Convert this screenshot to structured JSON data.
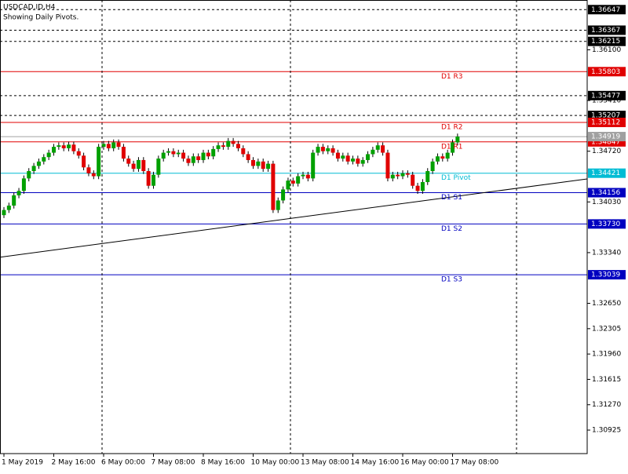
{
  "chart_data": {
    "type": "candlestick",
    "title": "USDCAD.ID,H4",
    "subtitle": "Showing Daily Pivots.",
    "categories": [
      "1 May 2019",
      null,
      null,
      null,
      null,
      null,
      null,
      null,
      null,
      null,
      "2 May 16:00",
      null,
      null,
      null,
      null,
      null,
      null,
      null,
      null,
      null,
      "6 May 00:00",
      null,
      null,
      null,
      null,
      null,
      null,
      null,
      null,
      null,
      "7 May 08:00",
      null,
      null,
      null,
      null,
      null,
      null,
      null,
      null,
      null,
      "8 May 16:00",
      null,
      null,
      null,
      null,
      null,
      null,
      null,
      null,
      null,
      "10 May 00:00",
      null,
      null,
      null,
      null,
      null,
      null,
      null,
      null,
      null,
      "13 May 08:00",
      null,
      null,
      null,
      null,
      null,
      null,
      null,
      null,
      null,
      "14 May 16:00",
      null,
      null,
      null,
      null,
      null,
      null,
      null,
      null,
      null,
      "16 May 00:00",
      null,
      null,
      null,
      null,
      null,
      null,
      null,
      null,
      null,
      "17 May 08:00",
      null
    ],
    "open": [
      1.3385,
      1.3392,
      1.3398,
      1.3412,
      1.3418,
      1.3435,
      1.3445,
      1.3452,
      1.3458,
      1.3464,
      1.347,
      1.3478,
      1.348,
      1.3476,
      1.3481,
      1.3472,
      1.3466,
      1.345,
      1.3442,
      1.3438,
      1.3478,
      1.3482,
      1.3476,
      1.3484,
      1.3478,
      1.3462,
      1.3455,
      1.3448,
      1.346,
      1.3445,
      1.3425,
      1.344,
      1.3462,
      1.347,
      1.3472,
      1.3468,
      1.347,
      1.3462,
      1.3456,
      1.3465,
      1.346,
      1.347,
      1.3465,
      1.3475,
      1.348,
      1.3478,
      1.3486,
      1.3482,
      1.3476,
      1.3468,
      1.346,
      1.3452,
      1.3458,
      1.3448,
      1.3455,
      1.3392,
      1.3405,
      1.342,
      1.3432,
      1.3428,
      1.3438,
      1.344,
      1.3435,
      1.347,
      1.3478,
      1.3472,
      1.3476,
      1.347,
      1.3462,
      1.3466,
      1.3458,
      1.3462,
      1.3455,
      1.346,
      1.3468,
      1.3474,
      1.348,
      1.347,
      1.3435,
      1.344,
      1.3438,
      1.3442,
      1.344,
      1.3425,
      1.3418,
      1.343,
      1.3445,
      1.3458,
      1.3465,
      1.3462,
      1.347,
      1.3484
    ],
    "high": [
      1.3396,
      1.3402,
      1.3416,
      1.3422,
      1.3439,
      1.3449,
      1.3456,
      1.3462,
      1.3468,
      1.3474,
      1.3482,
      1.3484,
      1.3484,
      1.3485,
      1.3485,
      1.3476,
      1.347,
      1.3454,
      1.3446,
      1.3482,
      1.3486,
      1.3486,
      1.3488,
      1.3488,
      1.3482,
      1.3466,
      1.3459,
      1.3464,
      1.3464,
      1.3449,
      1.3444,
      1.3466,
      1.3474,
      1.3476,
      1.3476,
      1.3474,
      1.3474,
      1.3466,
      1.3469,
      1.3469,
      1.3474,
      1.3474,
      1.3479,
      1.3484,
      1.3484,
      1.349,
      1.349,
      1.3486,
      1.348,
      1.3472,
      1.3464,
      1.3462,
      1.3462,
      1.3459,
      1.3459,
      1.3409,
      1.3424,
      1.3436,
      1.3436,
      1.3442,
      1.3444,
      1.3444,
      1.3474,
      1.3482,
      1.3482,
      1.348,
      1.348,
      1.3474,
      1.347,
      1.347,
      1.3466,
      1.3466,
      1.3464,
      1.3472,
      1.3478,
      1.3484,
      1.3484,
      1.3474,
      1.3444,
      1.3444,
      1.3446,
      1.3446,
      1.3444,
      1.3429,
      1.3434,
      1.3449,
      1.3462,
      1.3469,
      1.3469,
      1.3474,
      1.3488,
      1.3496
    ],
    "low": [
      1.3381,
      1.3388,
      1.3394,
      1.3408,
      1.3414,
      1.3431,
      1.3441,
      1.3448,
      1.3454,
      1.346,
      1.3466,
      1.3474,
      1.3472,
      1.3472,
      1.3468,
      1.3462,
      1.3446,
      1.3438,
      1.3434,
      1.3434,
      1.3474,
      1.3472,
      1.3472,
      1.3474,
      1.3458,
      1.3451,
      1.3444,
      1.3444,
      1.3441,
      1.3421,
      1.3421,
      1.3436,
      1.3458,
      1.3466,
      1.3464,
      1.3464,
      1.3458,
      1.3452,
      1.3452,
      1.3456,
      1.3456,
      1.3461,
      1.3461,
      1.3471,
      1.3474,
      1.3474,
      1.3478,
      1.3472,
      1.3464,
      1.3456,
      1.3448,
      1.3448,
      1.3444,
      1.3444,
      1.3388,
      1.3388,
      1.3401,
      1.3416,
      1.3424,
      1.3424,
      1.3434,
      1.3431,
      1.3431,
      1.3466,
      1.3468,
      1.3468,
      1.3466,
      1.3458,
      1.3458,
      1.3454,
      1.3454,
      1.3451,
      1.3451,
      1.3456,
      1.3464,
      1.347,
      1.3466,
      1.3431,
      1.3431,
      1.3434,
      1.3434,
      1.3436,
      1.3421,
      1.3414,
      1.3414,
      1.3426,
      1.3441,
      1.3454,
      1.3458,
      1.3458,
      1.3466,
      1.348
    ],
    "close": [
      1.3392,
      1.3398,
      1.3412,
      1.3418,
      1.3435,
      1.3445,
      1.3452,
      1.3458,
      1.3464,
      1.347,
      1.3478,
      1.348,
      1.3476,
      1.3481,
      1.3472,
      1.3466,
      1.345,
      1.3442,
      1.3438,
      1.3478,
      1.3482,
      1.3476,
      1.3484,
      1.3478,
      1.3462,
      1.3455,
      1.3448,
      1.346,
      1.3445,
      1.3425,
      1.344,
      1.3462,
      1.347,
      1.3472,
      1.3468,
      1.347,
      1.3462,
      1.3456,
      1.3465,
      1.346,
      1.347,
      1.3465,
      1.3475,
      1.348,
      1.3478,
      1.3486,
      1.3482,
      1.3476,
      1.3468,
      1.346,
      1.3452,
      1.3458,
      1.3448,
      1.3455,
      1.3392,
      1.3405,
      1.342,
      1.3432,
      1.3428,
      1.3438,
      1.344,
      1.3435,
      1.347,
      1.3478,
      1.3472,
      1.3476,
      1.347,
      1.3462,
      1.3466,
      1.3458,
      1.3462,
      1.3455,
      1.346,
      1.3468,
      1.3474,
      1.348,
      1.347,
      1.3435,
      1.344,
      1.3438,
      1.3442,
      1.344,
      1.3425,
      1.3418,
      1.343,
      1.3445,
      1.3458,
      1.3465,
      1.3462,
      1.347,
      1.3484,
      1.3492
    ],
    "up_color": "#00a000",
    "down_color": "#e00000",
    "ylim": [
      1.30605,
      1.36778
    ],
    "yticks": [
      {
        "value": 1.361,
        "label": "1.36100"
      },
      {
        "value": 1.3541,
        "label": "1.35410"
      },
      {
        "value": 1.3472,
        "label": "1.34720"
      },
      {
        "value": 1.3403,
        "label": "1.34030"
      },
      {
        "value": 1.3334,
        "label": "1.33340"
      },
      {
        "value": 1.3265,
        "label": "1.32650"
      },
      1.32305,
      {
        "value": 1.3196,
        "label": "1.31960"
      },
      1.31615,
      {
        "value": 1.3127,
        "label": "1.31270"
      },
      1.30925
    ],
    "hlines": [
      1.36647,
      1.36367,
      1.36215,
      1.35477,
      1.35207
    ],
    "price_line": {
      "value": 1.34919,
      "color": "#a0a0a0"
    },
    "levels": [
      {
        "name": "D1 R3",
        "value": 1.35803,
        "color": "#e00000"
      },
      {
        "name": "D1 R2",
        "value": 1.35112,
        "color": "#e00000"
      },
      {
        "name": "D1 R1",
        "value": 1.34847,
        "color": "#e00000"
      },
      {
        "name": "D1 Pivot",
        "value": 1.34421,
        "color": "#00bcd4"
      },
      {
        "name": "D1 S1",
        "value": 1.34156,
        "color": "#0000c0"
      },
      {
        "name": "D1 S2",
        "value": {
          "value": 1.3373,
          "label": "1.33730"
        },
        "color": "#0000c0"
      },
      {
        "name": "D1 S3",
        "value": 1.33039,
        "color": "#0000c0"
      }
    ],
    "trendline": {
      "start": 1.33278,
      "end": 1.34343
    }
  }
}
